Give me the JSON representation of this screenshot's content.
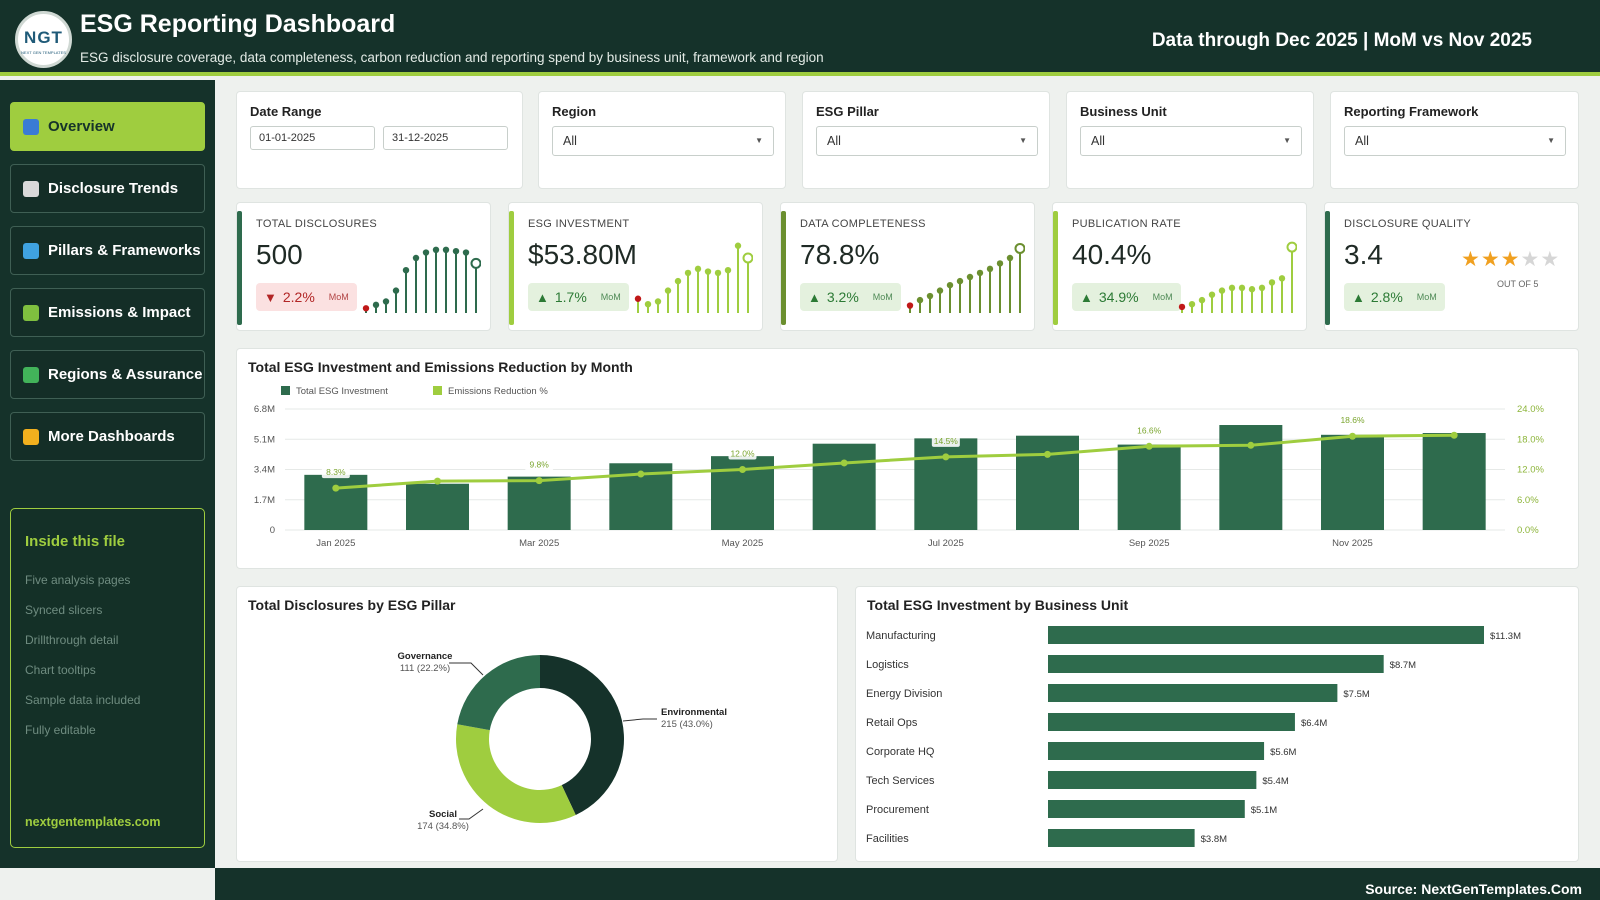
{
  "header": {
    "logo_text": "NGT",
    "logo_sub": "NEXT GEN TEMPLATES",
    "title": "ESG Reporting Dashboard",
    "subtitle": "ESG disclosure coverage, data completeness, carbon reduction and reporting spend by business unit, framework and region",
    "data_through": "Data through Dec 2025 | MoM vs Nov 2025"
  },
  "sidebar": {
    "items": [
      {
        "label": "Overview",
        "icon": "bar-chart-icon",
        "color": "#3a7bd5",
        "active": true
      },
      {
        "label": "Disclosure Trends",
        "icon": "line-chart-icon",
        "color": "#d9d9d9",
        "active": false
      },
      {
        "label": "Pillars & Frameworks",
        "icon": "globe-icon",
        "color": "#3fa2e0",
        "active": false
      },
      {
        "label": "Emissions & Impact",
        "icon": "seedling-icon",
        "color": "#7fbf3f",
        "active": false
      },
      {
        "label": "Regions & Assurance",
        "icon": "checkbox-icon",
        "color": "#42b35a",
        "active": false
      },
      {
        "label": "More Dashboards",
        "icon": "star-icon",
        "color": "#f2b01e",
        "active": false
      }
    ],
    "info_title": "Inside this file",
    "info_items": [
      "Five analysis pages",
      "Synced slicers",
      "Drillthrough detail",
      "Chart tooltips",
      "Sample data included",
      "Fully editable"
    ],
    "info_link": "nextgentemplates.com"
  },
  "slicers": {
    "date_range": {
      "label": "Date Range",
      "start": "01-01-2025",
      "end": "31-12-2025"
    },
    "region": {
      "label": "Region",
      "value": "All"
    },
    "esg_pillar": {
      "label": "ESG Pillar",
      "value": "All"
    },
    "business_unit": {
      "label": "Business Unit",
      "value": "All"
    },
    "framework": {
      "label": "Reporting Framework",
      "value": "All"
    }
  },
  "kpis": [
    {
      "label": "TOTAL DISCLOSURES",
      "value": "500",
      "change": "2.2%",
      "direction": "down",
      "mom": "MoM",
      "accent": "#2e6b4d",
      "spark_color": "#2e6b4d",
      "spark": [
        4,
        9,
        14,
        30,
        60,
        78,
        86,
        90,
        90,
        88,
        86,
        70
      ]
    },
    {
      "label": "ESG INVESTMENT",
      "value": "$53.80M",
      "change": "1.7%",
      "direction": "up",
      "mom": "MoM",
      "accent": "#9fcd3f",
      "spark_color": "#9fcd3f",
      "spark": [
        18,
        10,
        14,
        30,
        44,
        56,
        62,
        58,
        56,
        60,
        96,
        78
      ]
    },
    {
      "label": "DATA COMPLETENESS",
      "value": "78.8%",
      "change": "3.2%",
      "direction": "up",
      "mom": "MoM",
      "accent": "#6b8f2f",
      "spark_color": "#6b8f2f",
      "spark": [
        8,
        16,
        22,
        30,
        38,
        44,
        50,
        56,
        62,
        70,
        78,
        92
      ]
    },
    {
      "label": "PUBLICATION RATE",
      "value": "40.4%",
      "change": "34.9%",
      "direction": "up",
      "mom": "MoM",
      "accent": "#9fcd3f",
      "spark_color": "#9fcd3f",
      "spark": [
        6,
        10,
        16,
        24,
        30,
        34,
        34,
        32,
        34,
        42,
        48,
        94
      ]
    },
    {
      "label": "DISCLOSURE QUALITY",
      "value": "3.4",
      "change": "2.8%",
      "direction": "up",
      "mom": "MoM",
      "accent": "#2e6b4d",
      "rating": 3.4,
      "rating_max": 5,
      "out_of": "OUT OF 5"
    }
  ],
  "chart_data": [
    {
      "type": "bar",
      "title": "Total ESG Investment and Emissions Reduction by Month",
      "categories": [
        "Jan 2025",
        "Feb 2025",
        "Mar 2025",
        "Apr 2025",
        "May 2025",
        "Jun 2025",
        "Jul 2025",
        "Aug 2025",
        "Sep 2025",
        "Oct 2025",
        "Nov 2025",
        "Dec 2025"
      ],
      "x_tick_labels": [
        "Jan 2025",
        "",
        "Mar 2025",
        "",
        "May 2025",
        "",
        "Jul 2025",
        "",
        "Sep 2025",
        "",
        "Nov 2025",
        ""
      ],
      "series": [
        {
          "name": "Total ESG Investment",
          "type": "bar",
          "axis": "left",
          "color": "#2e6b4d",
          "values": [
            3.1,
            2.6,
            3.0,
            3.75,
            4.15,
            4.85,
            5.15,
            5.3,
            4.8,
            5.9,
            5.35,
            5.45
          ]
        },
        {
          "name": "Emissions Reduction %",
          "type": "line",
          "axis": "right",
          "color": "#9fcd3f",
          "values": [
            8.3,
            9.7,
            9.8,
            11.1,
            12.0,
            13.3,
            14.5,
            15.0,
            16.6,
            16.8,
            18.6,
            18.8
          ],
          "data_labels": [
            "8.3%",
            "",
            "9.8%",
            "",
            "12.0%",
            "",
            "14.5%",
            "",
            "16.6%",
            "",
            "18.6%",
            ""
          ]
        }
      ],
      "y_left": {
        "min": 0,
        "max": 6.8,
        "ticks": [
          "0",
          "1.7M",
          "3.4M",
          "5.1M",
          "6.8M"
        ]
      },
      "y_right": {
        "min": 0,
        "max": 24,
        "ticks": [
          "0.0%",
          "6.0%",
          "12.0%",
          "18.0%",
          "24.0%"
        ]
      },
      "legend_position": "top-left",
      "grid": true
    },
    {
      "type": "pie",
      "title": "Total Disclosures by ESG Pillar",
      "slices": [
        {
          "name": "Environmental",
          "value": 215,
          "label": "215 (43.0%)",
          "color": "#15322a"
        },
        {
          "name": "Social",
          "value": 174,
          "label": "174 (34.8%)",
          "color": "#9fcd3f"
        },
        {
          "name": "Governance",
          "value": 111,
          "label": "111 (22.2%)",
          "color": "#2e6b4d"
        }
      ]
    },
    {
      "type": "bar",
      "orientation": "horizontal",
      "title": "Total ESG Investment by Business Unit",
      "categories": [
        "Manufacturing",
        "Logistics",
        "Energy Division",
        "Retail Ops",
        "Corporate HQ",
        "Tech Services",
        "Procurement",
        "Facilities"
      ],
      "values": [
        11.3,
        8.7,
        7.5,
        6.4,
        5.6,
        5.4,
        5.1,
        3.8
      ],
      "data_labels": [
        "$11.3M",
        "$8.7M",
        "$7.5M",
        "$6.4M",
        "$5.6M",
        "$5.4M",
        "$5.1M",
        "$3.8M"
      ],
      "color": "#2e6b4d",
      "xlim": [
        0,
        11.3
      ]
    }
  ],
  "footer": {
    "source": "Source: NextGenTemplates.Com"
  }
}
